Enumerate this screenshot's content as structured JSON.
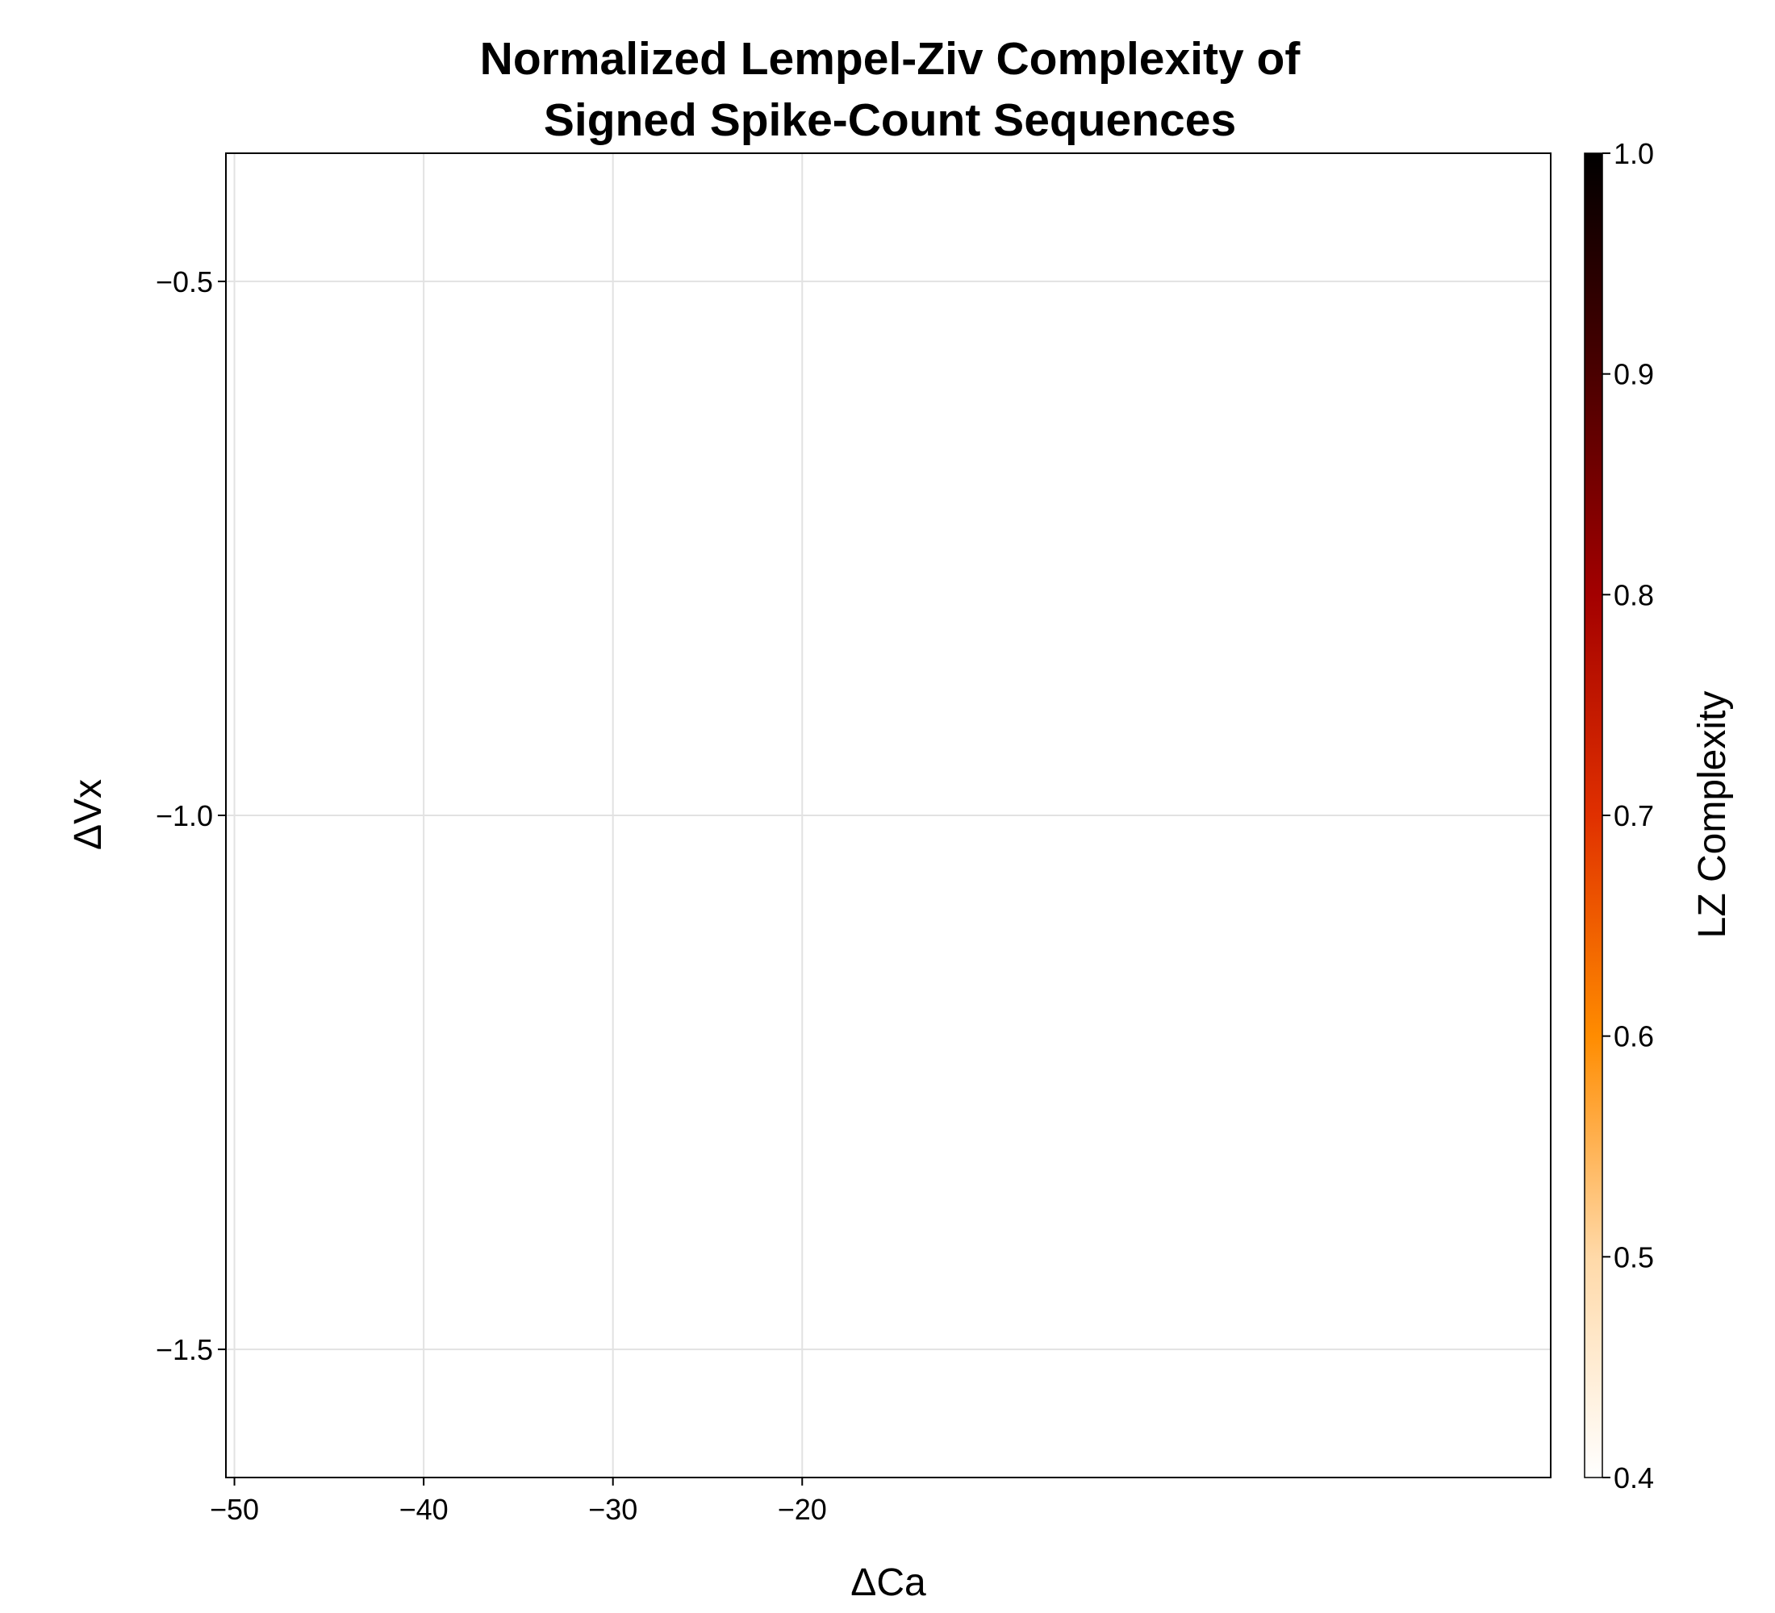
{
  "chart_data": {
    "type": "heatmap",
    "title": [
      "Normalized Lempel-Ziv Complexity of",
      "Signed Spike-Count Sequences"
    ],
    "xlabel": "ΔCa",
    "ylabel": "ΔVx",
    "xlim": [
      -50.45,
      19.55
    ],
    "ylim": [
      -1.62,
      -0.38
    ],
    "xticks": [
      -50,
      -40,
      -30,
      -20
    ],
    "xtick_labels": [
      "−50",
      "−40",
      "−30",
      "−20"
    ],
    "yticks": [
      -0.5,
      -1.0,
      -1.5
    ],
    "ytick_labels": [
      "−0.5",
      "−1.0",
      "−1.5"
    ],
    "grid": true,
    "cells": [],
    "colorbar": {
      "label": "LZ Complexity",
      "range": [
        0.4,
        1.0
      ],
      "ticks": [
        0.4,
        0.5,
        0.6,
        0.7,
        0.8,
        0.9,
        1.0
      ],
      "tick_labels": [
        "0.4",
        "0.5",
        "0.6",
        "0.7",
        "0.8",
        "0.9",
        "1.0"
      ],
      "colormap": [
        "#ffffff",
        "#ffd9a8",
        "#ff8c00",
        "#e03000",
        "#a30000",
        "#4a0000",
        "#000000"
      ]
    }
  }
}
